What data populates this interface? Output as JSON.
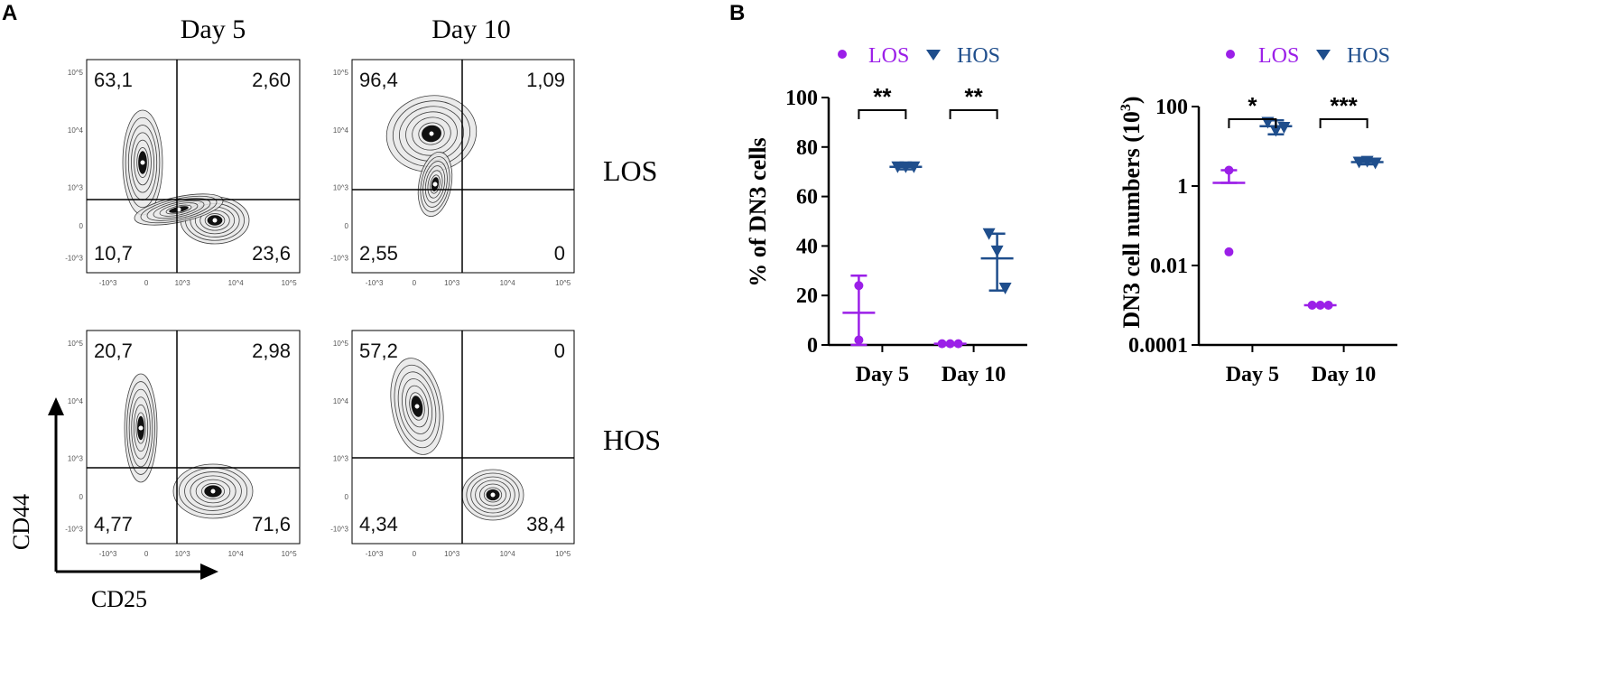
{
  "panel_a": {
    "letter": "A",
    "columns": [
      "Day 5",
      "Day 10"
    ],
    "rows": [
      "LOS",
      "HOS"
    ],
    "x_axis_label": "CD25",
    "y_axis_label": "CD44",
    "axis_ticks": [
      "10^5",
      "10^4",
      "10^3",
      "0",
      "-10^3"
    ],
    "plots": [
      {
        "row": "LOS",
        "col": "Day 5",
        "quadrants": {
          "upper_left": "63,1",
          "upper_right": "2,60",
          "lower_left": "10,7",
          "lower_right": "23,6"
        }
      },
      {
        "row": "LOS",
        "col": "Day 10",
        "quadrants": {
          "upper_left": "96,4",
          "upper_right": "1,09",
          "lower_left": "2,55",
          "lower_right": "0"
        }
      },
      {
        "row": "HOS",
        "col": "Day 5",
        "quadrants": {
          "upper_left": "20,7",
          "upper_right": "2,98",
          "lower_left": "4,77",
          "lower_right": "71,6"
        }
      },
      {
        "row": "HOS",
        "col": "Day 10",
        "quadrants": {
          "upper_left": "57,2",
          "upper_right": "0",
          "lower_left": "4,34",
          "lower_right": "38,4"
        }
      }
    ]
  },
  "panel_b": {
    "letter": "B",
    "legend": [
      {
        "label": "LOS",
        "marker": "circle",
        "color": "#9B1FE8"
      },
      {
        "label": "HOS",
        "marker": "triangle-down",
        "color": "#1F4E8C"
      }
    ]
  },
  "chart_data": [
    {
      "type": "scatter",
      "title": "",
      "xlabel": "",
      "ylabel": "% of DN3 cells",
      "categories": [
        "Day 5",
        "Day 10"
      ],
      "ylim": [
        0,
        100
      ],
      "yticks": [
        "0",
        "20",
        "40",
        "60",
        "80",
        "100"
      ],
      "series": [
        {
          "name": "LOS",
          "color": "#9B1FE8",
          "marker": "circle",
          "points": {
            "Day 5": [
              24,
              2
            ],
            "Day 10": [
              0.5,
              0.5,
              0.5
            ]
          },
          "mean": {
            "Day 5": 13,
            "Day 10": 0.5
          },
          "err": {
            "Day 5": [
              0,
              28
            ],
            "Day 10": [
              0.5,
              0.5
            ]
          }
        },
        {
          "name": "HOS",
          "color": "#1F4E8C",
          "marker": "triangle-down",
          "points": {
            "Day 5": [
              72,
              72,
              72
            ],
            "Day 10": [
              45,
              38,
              23
            ]
          },
          "mean": {
            "Day 5": 72,
            "Day 10": 35
          },
          "err": {
            "Day 5": [
              71,
              73
            ],
            "Day 10": [
              22,
              45
            ]
          }
        }
      ],
      "significance": [
        {
          "category": "Day 5",
          "label": "**"
        },
        {
          "category": "Day 10",
          "label": "**"
        }
      ]
    },
    {
      "type": "scatter",
      "title": "",
      "xlabel": "",
      "ylabel": "DN3 cell numbers (10",
      "ylabel_sup": "3",
      "ylabel_close": ")",
      "yscale": "log",
      "categories": [
        "Day 5",
        "Day 10"
      ],
      "ylim": [
        0.0001,
        100
      ],
      "yticks": [
        "0.0001",
        "0.01",
        "1",
        "100"
      ],
      "series": [
        {
          "name": "LOS",
          "color": "#9B1FE8",
          "marker": "circle",
          "points": {
            "Day 5": [
              2.5,
              0.022
            ],
            "Day 10": [
              0.001,
              0.001,
              0.001
            ]
          },
          "mean": {
            "Day 5": 1.2,
            "Day 10": 0.001
          },
          "err": {
            "Day 5": [
              1.2,
              2.5
            ],
            "Day 10": [
              0.001,
              0.001
            ]
          }
        },
        {
          "name": "HOS",
          "color": "#1F4E8C",
          "marker": "triangle-down",
          "points": {
            "Day 5": [
              40,
              25,
              30
            ],
            "Day 10": [
              4.0,
              4.2,
              3.8
            ]
          },
          "mean": {
            "Day 5": 32,
            "Day 10": 4.0
          },
          "err": {
            "Day 5": [
              20,
              45
            ],
            "Day 10": [
              3.5,
              4.5
            ]
          }
        }
      ],
      "significance": [
        {
          "category": "Day 5",
          "label": "*"
        },
        {
          "category": "Day 10",
          "label": "***"
        }
      ]
    }
  ]
}
